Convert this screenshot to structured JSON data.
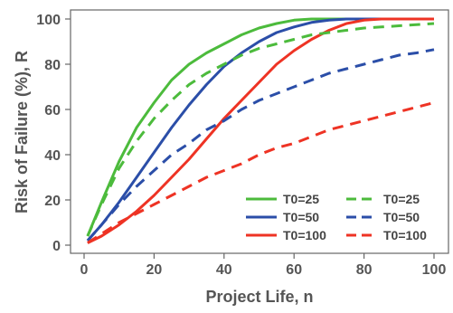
{
  "chart_data": {
    "type": "line",
    "xlabel": "Project Life, n",
    "ylabel": "Risk of Failure (%), R",
    "xlim": [
      0,
      100
    ],
    "ylim": [
      0,
      100
    ],
    "xticks": [
      0,
      20,
      40,
      60,
      80,
      100
    ],
    "yticks": [
      0,
      20,
      40,
      60,
      80,
      100
    ],
    "grid": false,
    "legend_position": "bottom-right",
    "x": [
      1,
      5,
      10,
      15,
      20,
      25,
      30,
      35,
      40,
      45,
      50,
      55,
      60,
      65,
      70,
      75,
      80,
      85,
      90,
      95,
      100
    ],
    "series": [
      {
        "name": "T0=25",
        "color": "#4cbb3c",
        "style": "solid",
        "values": [
          4,
          19,
          37,
          52,
          63,
          73,
          80,
          85,
          89,
          93,
          96,
          98,
          99.5,
          100,
          100,
          100,
          100,
          100,
          100,
          100,
          100
        ]
      },
      {
        "name": "T0=50",
        "color": "#2b4ea8",
        "style": "solid",
        "values": [
          2,
          9,
          19,
          30,
          41,
          52,
          62,
          71,
          79,
          85,
          90,
          94,
          96.5,
          98.5,
          99.5,
          100,
          100,
          100,
          100,
          100,
          100
        ]
      },
      {
        "name": "T0=100",
        "color": "#ee3324",
        "style": "solid",
        "values": [
          1,
          4,
          9,
          15,
          22,
          30,
          38,
          47,
          56,
          64,
          72,
          80,
          86,
          91,
          95,
          98,
          99.5,
          100,
          100,
          100,
          100
        ]
      },
      {
        "name": "T0=25",
        "color": "#4cbb3c",
        "style": "dashed",
        "values": [
          4,
          18,
          34,
          46,
          56,
          64,
          71,
          76,
          80,
          84,
          87,
          89,
          91,
          93,
          94,
          95,
          96,
          96.5,
          97,
          97.5,
          98
        ]
      },
      {
        "name": "T0=50",
        "color": "#2b4ea8",
        "style": "dashed",
        "values": [
          2,
          9,
          18,
          26,
          33,
          40,
          45,
          51,
          55,
          60,
          64,
          67,
          70,
          73,
          76,
          78,
          80,
          82,
          84,
          85,
          86.5
        ]
      },
      {
        "name": "T0=100",
        "color": "#ee3324",
        "style": "dashed",
        "values": [
          1,
          5,
          10,
          14,
          18,
          22,
          26,
          30,
          33,
          36,
          40,
          43,
          45,
          48,
          51,
          53,
          55,
          57,
          59,
          61,
          63
        ]
      }
    ]
  }
}
